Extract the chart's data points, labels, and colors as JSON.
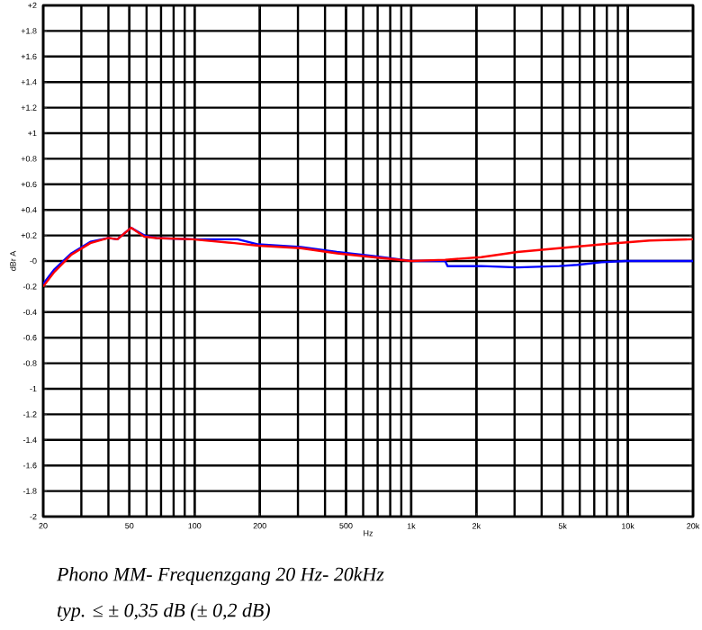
{
  "chart_data": {
    "type": "line",
    "xlabel": "Hz",
    "ylabel": "dBr A",
    "log": "x",
    "grid": true,
    "xlim": [
      20,
      20000
    ],
    "ylim": [
      -2,
      2
    ],
    "xticks": [
      20,
      50,
      100,
      200,
      500,
      {
        "value": 1000,
        "label": "1k"
      },
      {
        "value": 2000,
        "label": "2k"
      },
      {
        "value": 5000,
        "label": "5k"
      },
      {
        "value": 10000,
        "label": "10k"
      },
      {
        "value": 20000,
        "label": "20k"
      }
    ],
    "yticks": [
      {
        "value": -2,
        "label": "-2"
      },
      {
        "value": -1.8,
        "label": "-1.8"
      },
      {
        "value": -1.6,
        "label": "-1.6"
      },
      {
        "value": -1.4,
        "label": "-1.4"
      },
      {
        "value": -1.2,
        "label": "-1.2"
      },
      {
        "value": -1,
        "label": "-1"
      },
      {
        "value": -0.8,
        "label": "-0.8"
      },
      {
        "value": -0.6,
        "label": "-0.6"
      },
      {
        "value": -0.4,
        "label": "-0.4"
      },
      {
        "value": -0.2,
        "label": "-0.2"
      },
      {
        "value": 0,
        "label": "-0"
      },
      {
        "value": 0.2,
        "label": "+0.2"
      },
      {
        "value": 0.4,
        "label": "+0.4"
      },
      {
        "value": 0.6,
        "label": "+0.6"
      },
      {
        "value": 0.8,
        "label": "+0.8"
      },
      {
        "value": 1,
        "label": "+1"
      },
      {
        "value": 1.2,
        "label": "+1.2"
      },
      {
        "value": 1.4,
        "label": "+1.4"
      },
      {
        "value": 1.6,
        "label": "+1.6"
      },
      {
        "value": 1.8,
        "label": "+1.8"
      },
      {
        "value": 2,
        "label": "+2"
      }
    ],
    "series": [
      {
        "color": "#0000ff",
        "x": [
          20,
          22.4,
          27,
          33,
          40,
          44,
          50.9,
          58.6,
          66.5,
          97.6,
          158,
          197,
          309,
          454,
          666,
          1000,
          1435,
          1472,
          2104,
          3090,
          4832,
          5860,
          7568,
          9770,
          20000
        ],
        "values": [
          -0.18,
          -0.07,
          0.06,
          0.15,
          0.18,
          0.17,
          0.26,
          0.2,
          0.18,
          0.17,
          0.17,
          0.13,
          0.11,
          0.07,
          0.04,
          0,
          0,
          -0.04,
          -0.04,
          -0.05,
          -0.04,
          -0.03,
          -0.01,
          0,
          0
        ]
      },
      {
        "color": "#ff0000",
        "x": [
          20,
          22.4,
          27,
          33,
          40,
          44,
          50.9,
          58.6,
          66.5,
          97.6,
          152.8,
          197,
          309,
          454,
          666,
          1000,
          1435,
          2104,
          3090,
          4832,
          7568,
          12619,
          20000
        ],
        "values": [
          -0.2,
          -0.09,
          0.05,
          0.14,
          0.18,
          0.17,
          0.26,
          0.19,
          0.18,
          0.17,
          0.14,
          0.12,
          0.1,
          0.06,
          0.03,
          0,
          0.01,
          0.03,
          0.07,
          0.1,
          0.13,
          0.16,
          0.17
        ]
      }
    ],
    "annotations": [
      "Phono MM- Frequenzgang 20 Hz- 20kHz",
      "typ. ≤ ± 0,35 dB  (± 0,2 dB)"
    ]
  }
}
